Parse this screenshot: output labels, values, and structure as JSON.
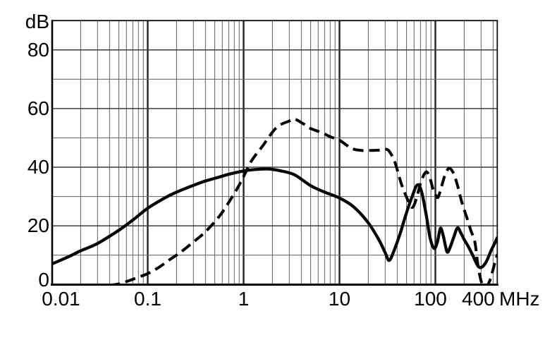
{
  "chart_data": {
    "type": "line",
    "ylabel": "dB",
    "x_unit": "MHz",
    "x_scale": "log",
    "x_range_mhz": [
      0.01,
      450
    ],
    "y_range_db": [
      0,
      90
    ],
    "grid": "on, log minor verticals (2-9 per decade), horizontal every 10 dB",
    "legend": "none",
    "x_ticks": [
      {
        "label": "0.01",
        "mhz": 0.01
      },
      {
        "label": "0.1",
        "mhz": 0.1
      },
      {
        "label": "1",
        "mhz": 1
      },
      {
        "label": "10",
        "mhz": 10
      },
      {
        "label": "100",
        "mhz": 100
      },
      {
        "label": "400",
        "mhz": 400
      }
    ],
    "y_ticks": [
      {
        "label": "0",
        "db": 0
      },
      {
        "label": "20",
        "db": 20
      },
      {
        "label": "40",
        "db": 40
      },
      {
        "label": "60",
        "db": 60
      },
      {
        "label": "80",
        "db": 80
      }
    ],
    "series": [
      {
        "name": "solid-curve",
        "style": "solid",
        "color": "#050505",
        "points_mhz_db": [
          [
            0.01,
            7
          ],
          [
            0.015,
            9.5
          ],
          [
            0.02,
            11.5
          ],
          [
            0.03,
            14
          ],
          [
            0.05,
            18.5
          ],
          [
            0.07,
            22
          ],
          [
            0.1,
            26
          ],
          [
            0.15,
            29.5
          ],
          [
            0.2,
            31.5
          ],
          [
            0.3,
            33.8
          ],
          [
            0.4,
            35.3
          ],
          [
            0.55,
            36.6
          ],
          [
            0.7,
            37.6
          ],
          [
            1,
            38.7
          ],
          [
            1.3,
            39.2
          ],
          [
            1.8,
            39.4
          ],
          [
            2.4,
            38.8
          ],
          [
            3.4,
            37.4
          ],
          [
            5,
            33.7
          ],
          [
            7,
            31.5
          ],
          [
            10,
            29.5
          ],
          [
            14,
            26.5
          ],
          [
            20,
            21
          ],
          [
            26,
            15
          ],
          [
            30,
            10.8
          ],
          [
            33,
            8.2
          ],
          [
            37,
            11.5
          ],
          [
            43,
            17.5
          ],
          [
            50,
            24.5
          ],
          [
            58,
            30.5
          ],
          [
            65,
            34
          ],
          [
            72,
            31.5
          ],
          [
            80,
            24
          ],
          [
            88,
            16
          ],
          [
            97,
            12.3
          ],
          [
            105,
            14.5
          ],
          [
            113,
            19.2
          ],
          [
            121,
            16.5
          ],
          [
            128,
            12.8
          ],
          [
            134,
            11
          ],
          [
            143,
            12.8
          ],
          [
            155,
            16
          ],
          [
            170,
            19.3
          ],
          [
            185,
            17.5
          ],
          [
            200,
            15.3
          ],
          [
            220,
            13
          ],
          [
            245,
            10
          ],
          [
            270,
            7
          ],
          [
            290,
            5.8
          ],
          [
            315,
            6.3
          ],
          [
            345,
            8.2
          ],
          [
            380,
            11.5
          ],
          [
            415,
            14
          ],
          [
            445,
            16.2
          ]
        ]
      },
      {
        "name": "dashed-curve",
        "style": "dashed",
        "color": "#050505",
        "points_mhz_db": [
          [
            0.04,
            -0.3
          ],
          [
            0.05,
            0.2
          ],
          [
            0.065,
            1.4
          ],
          [
            0.08,
            2.5
          ],
          [
            0.1,
            3.7
          ],
          [
            0.13,
            5.8
          ],
          [
            0.17,
            8.5
          ],
          [
            0.22,
            11
          ],
          [
            0.3,
            14.5
          ],
          [
            0.4,
            18
          ],
          [
            0.55,
            23
          ],
          [
            0.7,
            28
          ],
          [
            0.85,
            32.5
          ],
          [
            1,
            36.8
          ],
          [
            1.2,
            42
          ],
          [
            1.6,
            47.5
          ],
          [
            2.2,
            53.5
          ],
          [
            3,
            55.8
          ],
          [
            3.4,
            56.4
          ],
          [
            4.2,
            54.8
          ],
          [
            5,
            53.2
          ],
          [
            6.5,
            51.8
          ],
          [
            8,
            50.4
          ],
          [
            10,
            49.2
          ],
          [
            12,
            47.4
          ],
          [
            14,
            46.2
          ],
          [
            17,
            45.7
          ],
          [
            21,
            45.7
          ],
          [
            26,
            45.8
          ],
          [
            31,
            46.1
          ],
          [
            34,
            44.8
          ],
          [
            38,
            41.5
          ],
          [
            44,
            34.5
          ],
          [
            50,
            29.8
          ],
          [
            57,
            26.3
          ],
          [
            63,
            29
          ],
          [
            70,
            34.5
          ],
          [
            77,
            37.8
          ],
          [
            82,
            38.3
          ],
          [
            88,
            36.2
          ],
          [
            95,
            32.3
          ],
          [
            102,
            30.2
          ],
          [
            107,
            29.8
          ],
          [
            115,
            33
          ],
          [
            125,
            37
          ],
          [
            138,
            39.6
          ],
          [
            152,
            38.4
          ],
          [
            168,
            34.5
          ],
          [
            182,
            30
          ],
          [
            195,
            26.5
          ],
          [
            215,
            22.4
          ],
          [
            235,
            18.3
          ],
          [
            258,
            14.5
          ],
          [
            278,
            6.5
          ],
          [
            298,
            1.5
          ],
          [
            318,
            -0.6
          ],
          [
            342,
            -0.8
          ],
          [
            368,
            1.2
          ],
          [
            395,
            4.5
          ],
          [
            420,
            7.8
          ],
          [
            445,
            10.4
          ]
        ]
      }
    ]
  }
}
